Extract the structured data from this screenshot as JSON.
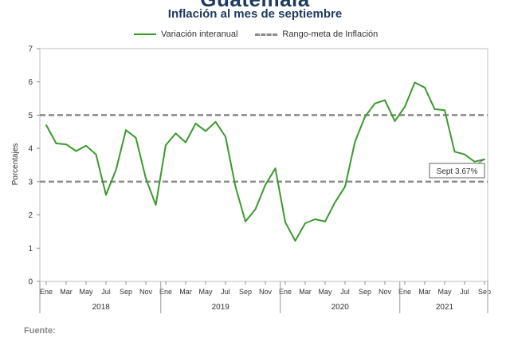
{
  "title": "Guatemala",
  "subtitle": "Inflación al mes de septiembre",
  "source_label": "Fuente:",
  "annotation": "Sept 3.67%",
  "colors": {
    "series": "#3a9a2c",
    "target": "#8a8a8a"
  },
  "chart_data": {
    "type": "line",
    "ylabel": "Porcentajes",
    "ylim": [
      0,
      7
    ],
    "yticks": [
      0,
      1,
      2,
      3,
      4,
      5,
      6,
      7
    ],
    "grid": false,
    "legend_position": "top-center",
    "month_labels": [
      "Ene",
      "Mar",
      "May",
      "Jul",
      "Sep",
      "Nov",
      "Ene",
      "Mar",
      "May",
      "Jul",
      "Sep",
      "Nov",
      "Ene",
      "Mar",
      "May",
      "Jul",
      "Sep",
      "Nov",
      "Ene",
      "Mar",
      "May",
      "Jul",
      "Sep"
    ],
    "years": [
      "2018",
      "2019",
      "2020",
      "2021"
    ],
    "x": [
      "2018-01",
      "2018-02",
      "2018-03",
      "2018-04",
      "2018-05",
      "2018-06",
      "2018-07",
      "2018-08",
      "2018-09",
      "2018-10",
      "2018-11",
      "2018-12",
      "2019-01",
      "2019-02",
      "2019-03",
      "2019-04",
      "2019-05",
      "2019-06",
      "2019-07",
      "2019-08",
      "2019-09",
      "2019-10",
      "2019-11",
      "2019-12",
      "2020-01",
      "2020-02",
      "2020-03",
      "2020-04",
      "2020-05",
      "2020-06",
      "2020-07",
      "2020-08",
      "2020-09",
      "2020-10",
      "2020-11",
      "2020-12",
      "2021-01",
      "2021-02",
      "2021-03",
      "2021-04",
      "2021-05",
      "2021-06",
      "2021-07",
      "2021-08",
      "2021-09"
    ],
    "series": [
      {
        "name": "Variación interanual",
        "values": [
          4.7,
          4.15,
          4.12,
          3.92,
          4.08,
          3.82,
          2.6,
          3.35,
          4.55,
          4.32,
          3.1,
          2.3,
          4.1,
          4.45,
          4.18,
          4.75,
          4.52,
          4.8,
          4.35,
          2.85,
          1.8,
          2.17,
          2.9,
          3.4,
          1.78,
          1.22,
          1.75,
          1.87,
          1.8,
          2.38,
          2.85,
          4.2,
          4.95,
          5.35,
          5.45,
          4.82,
          5.25,
          5.98,
          5.83,
          5.18,
          5.15,
          3.9,
          3.82,
          3.6,
          3.67
        ]
      },
      {
        "name": "Rango-meta de Inflación",
        "lines": [
          3,
          5
        ]
      }
    ]
  }
}
